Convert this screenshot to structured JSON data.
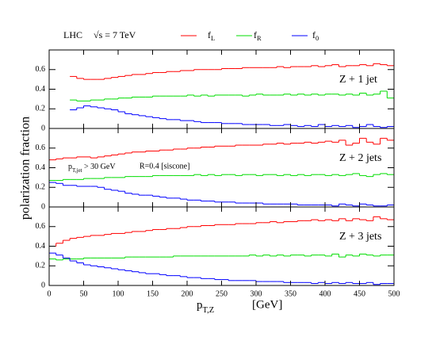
{
  "figure": {
    "header": "LHC",
    "energy": "√s = 7 TeV",
    "y_label": "polarization fraction",
    "x_label": "pT,Z",
    "x_unit": "[GeV]"
  },
  "chart_data": [
    {
      "type": "histogram",
      "annotation": "Z + 1 jet",
      "bins": [
        30,
        40,
        50,
        60,
        70,
        80,
        90,
        100,
        110,
        120,
        130,
        140,
        150,
        160,
        170,
        180,
        190,
        200,
        210,
        220,
        230,
        240,
        250,
        260,
        270,
        280,
        290,
        300,
        310,
        320,
        330,
        340,
        350,
        360,
        370,
        380,
        390,
        400,
        410,
        420,
        430,
        440,
        450,
        460,
        470,
        480,
        490,
        500
      ],
      "xlim": [
        0,
        500
      ],
      "xticks": [
        0,
        50,
        100,
        150,
        200,
        250,
        300,
        350,
        400,
        450,
        500
      ],
      "ylim": [
        0,
        0.8
      ],
      "yticks": [
        0,
        0.2,
        0.4,
        0.6
      ],
      "series": [
        {
          "name": "fL",
          "color": "#ff0000",
          "values": [
            0.53,
            0.51,
            0.5,
            0.5,
            0.5,
            0.51,
            0.52,
            0.53,
            0.54,
            0.55,
            0.55,
            0.56,
            0.57,
            0.57,
            0.58,
            0.58,
            0.59,
            0.59,
            0.6,
            0.6,
            0.6,
            0.6,
            0.61,
            0.61,
            0.61,
            0.62,
            0.62,
            0.62,
            0.62,
            0.62,
            0.63,
            0.62,
            0.63,
            0.63,
            0.63,
            0.64,
            0.63,
            0.64,
            0.65,
            0.63,
            0.64,
            0.64,
            0.65,
            0.64,
            0.66,
            0.65,
            0.64
          ]
        },
        {
          "name": "fR",
          "color": "#00dd00",
          "values": [
            0.29,
            0.28,
            0.28,
            0.29,
            0.29,
            0.3,
            0.3,
            0.31,
            0.31,
            0.32,
            0.32,
            0.32,
            0.33,
            0.33,
            0.33,
            0.33,
            0.33,
            0.34,
            0.33,
            0.34,
            0.33,
            0.34,
            0.34,
            0.34,
            0.34,
            0.33,
            0.34,
            0.35,
            0.34,
            0.34,
            0.34,
            0.35,
            0.34,
            0.35,
            0.34,
            0.35,
            0.34,
            0.35,
            0.35,
            0.34,
            0.35,
            0.34,
            0.36,
            0.34,
            0.35,
            0.38,
            0.31
          ]
        },
        {
          "name": "f0",
          "color": "#0000ff",
          "values": [
            0.19,
            0.21,
            0.23,
            0.22,
            0.21,
            0.2,
            0.19,
            0.17,
            0.15,
            0.14,
            0.13,
            0.12,
            0.11,
            0.1,
            0.09,
            0.09,
            0.08,
            0.08,
            0.07,
            0.06,
            0.06,
            0.06,
            0.05,
            0.05,
            0.05,
            0.04,
            0.04,
            0.04,
            0.04,
            0.03,
            0.03,
            0.04,
            0.03,
            0.02,
            0.03,
            0.02,
            0.04,
            0.02,
            0.03,
            0.02,
            0.03,
            0.01,
            0.02,
            0.04,
            0.02,
            0.01,
            0.02
          ]
        }
      ]
    },
    {
      "type": "histogram",
      "annotation": "Z + 2 jets",
      "cut": "pT,jet > 30 GeV",
      "algorithm": "R=0.4 [siscone]",
      "bins": [
        0,
        10,
        20,
        30,
        40,
        50,
        60,
        70,
        80,
        90,
        100,
        110,
        120,
        130,
        140,
        150,
        160,
        170,
        180,
        190,
        200,
        210,
        220,
        230,
        240,
        250,
        260,
        270,
        280,
        290,
        300,
        310,
        320,
        330,
        340,
        350,
        360,
        370,
        380,
        390,
        400,
        410,
        420,
        430,
        440,
        450,
        460,
        470,
        480,
        490,
        500
      ],
      "xlim": [
        0,
        500
      ],
      "xticks": [
        0,
        50,
        100,
        150,
        200,
        250,
        300,
        350,
        400,
        450,
        500
      ],
      "ylim": [
        0,
        0.8
      ],
      "yticks": [
        0,
        0.2,
        0.4,
        0.6
      ],
      "series": [
        {
          "name": "fL",
          "color": "#ff0000",
          "values": [
            0.48,
            0.49,
            0.5,
            0.5,
            0.51,
            0.51,
            0.5,
            0.51,
            0.52,
            0.53,
            0.54,
            0.55,
            0.56,
            0.56,
            0.57,
            0.57,
            0.58,
            0.58,
            0.59,
            0.59,
            0.6,
            0.6,
            0.61,
            0.61,
            0.62,
            0.62,
            0.62,
            0.63,
            0.63,
            0.63,
            0.63,
            0.64,
            0.64,
            0.65,
            0.64,
            0.65,
            0.65,
            0.66,
            0.65,
            0.66,
            0.67,
            0.66,
            0.68,
            0.63,
            0.65,
            0.7,
            0.66,
            0.64,
            0.7,
            0.68
          ]
        },
        {
          "name": "fR",
          "color": "#00dd00",
          "values": [
            0.27,
            0.27,
            0.28,
            0.28,
            0.28,
            0.29,
            0.29,
            0.29,
            0.3,
            0.3,
            0.3,
            0.31,
            0.31,
            0.31,
            0.31,
            0.32,
            0.32,
            0.32,
            0.32,
            0.32,
            0.32,
            0.33,
            0.32,
            0.33,
            0.32,
            0.33,
            0.33,
            0.32,
            0.33,
            0.33,
            0.32,
            0.33,
            0.33,
            0.32,
            0.33,
            0.32,
            0.33,
            0.32,
            0.33,
            0.33,
            0.32,
            0.33,
            0.32,
            0.33,
            0.34,
            0.32,
            0.31,
            0.33,
            0.34,
            0.33
          ]
        },
        {
          "name": "f0",
          "color": "#0000ff",
          "values": [
            0.25,
            0.24,
            0.22,
            0.22,
            0.21,
            0.21,
            0.21,
            0.2,
            0.18,
            0.17,
            0.16,
            0.14,
            0.13,
            0.12,
            0.12,
            0.11,
            0.1,
            0.09,
            0.09,
            0.08,
            0.07,
            0.07,
            0.06,
            0.06,
            0.05,
            0.05,
            0.05,
            0.04,
            0.04,
            0.04,
            0.04,
            0.03,
            0.03,
            0.03,
            0.03,
            0.03,
            0.02,
            0.02,
            0.02,
            0.02,
            0.02,
            0.01,
            0.03,
            0.02,
            0.01,
            0.03,
            0.02,
            0.01,
            0.01,
            0.02
          ]
        }
      ]
    },
    {
      "type": "histogram",
      "annotation": "Z + 3 jets",
      "bins": [
        0,
        10,
        20,
        30,
        40,
        50,
        60,
        70,
        80,
        90,
        100,
        110,
        120,
        130,
        140,
        150,
        160,
        170,
        180,
        190,
        200,
        210,
        220,
        230,
        240,
        250,
        260,
        270,
        280,
        290,
        300,
        310,
        320,
        330,
        340,
        350,
        360,
        370,
        380,
        390,
        400,
        410,
        420,
        430,
        440,
        450,
        460,
        470,
        480,
        490,
        500
      ],
      "xlim": [
        0,
        500
      ],
      "xticks": [
        0,
        50,
        100,
        150,
        200,
        250,
        300,
        350,
        400,
        450,
        500
      ],
      "ylim": [
        0,
        0.8
      ],
      "yticks": [
        0,
        0.2,
        0.4,
        0.6
      ],
      "series": [
        {
          "name": "fL",
          "color": "#ff0000",
          "values": [
            0.4,
            0.43,
            0.46,
            0.48,
            0.49,
            0.5,
            0.51,
            0.51,
            0.52,
            0.53,
            0.53,
            0.54,
            0.55,
            0.55,
            0.56,
            0.57,
            0.57,
            0.58,
            0.58,
            0.59,
            0.6,
            0.6,
            0.61,
            0.61,
            0.62,
            0.62,
            0.62,
            0.63,
            0.63,
            0.63,
            0.64,
            0.64,
            0.65,
            0.64,
            0.65,
            0.65,
            0.66,
            0.66,
            0.67,
            0.66,
            0.67,
            0.66,
            0.68,
            0.66,
            0.68,
            0.67,
            0.66,
            0.7,
            0.68,
            0.67
          ]
        },
        {
          "name": "fR",
          "color": "#00dd00",
          "values": [
            0.27,
            0.26,
            0.27,
            0.27,
            0.27,
            0.28,
            0.28,
            0.28,
            0.28,
            0.28,
            0.28,
            0.29,
            0.29,
            0.29,
            0.29,
            0.29,
            0.29,
            0.29,
            0.3,
            0.3,
            0.3,
            0.3,
            0.3,
            0.3,
            0.3,
            0.3,
            0.3,
            0.3,
            0.3,
            0.31,
            0.3,
            0.31,
            0.3,
            0.31,
            0.3,
            0.31,
            0.31,
            0.3,
            0.31,
            0.31,
            0.3,
            0.32,
            0.29,
            0.31,
            0.3,
            0.32,
            0.31,
            0.3,
            0.31,
            0.31
          ]
        },
        {
          "name": "f0",
          "color": "#0000ff",
          "values": [
            0.33,
            0.31,
            0.28,
            0.25,
            0.23,
            0.21,
            0.2,
            0.19,
            0.18,
            0.17,
            0.16,
            0.15,
            0.14,
            0.13,
            0.12,
            0.12,
            0.11,
            0.1,
            0.1,
            0.09,
            0.08,
            0.08,
            0.07,
            0.07,
            0.06,
            0.06,
            0.05,
            0.05,
            0.05,
            0.05,
            0.04,
            0.04,
            0.04,
            0.04,
            0.03,
            0.03,
            0.03,
            0.03,
            0.02,
            0.03,
            0.02,
            0.03,
            0.02,
            0.03,
            0.02,
            0.02,
            0.03,
            0.01,
            0.02,
            0.02
          ]
        }
      ]
    }
  ]
}
